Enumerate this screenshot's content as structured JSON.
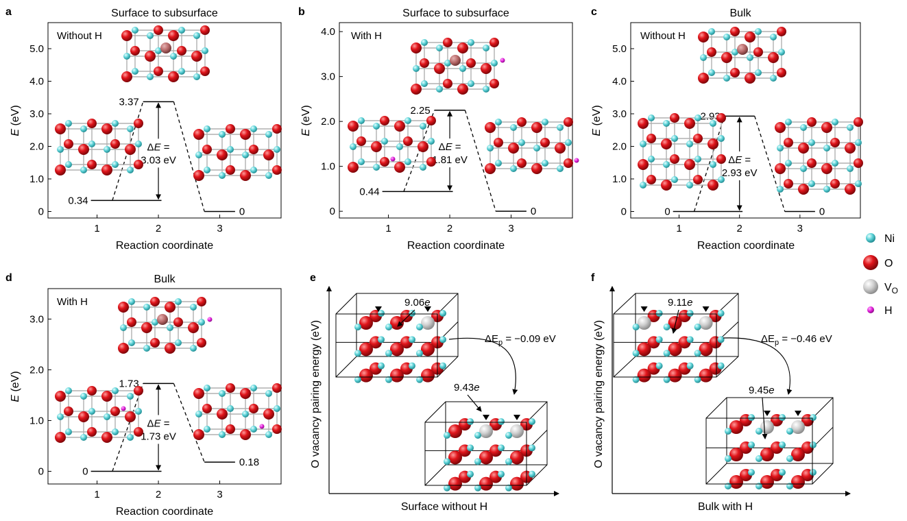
{
  "figure": {
    "legend": [
      {
        "key": "ni",
        "label": "Ni",
        "color": "#5fd3d8"
      },
      {
        "key": "o",
        "label": "O",
        "color": "#e0151b"
      },
      {
        "key": "vo",
        "label": "V",
        "sub": "O",
        "color": "#c8c8c8"
      },
      {
        "key": "h",
        "label": "H",
        "color": "#e020d8"
      }
    ],
    "colors": {
      "ni": "#5fd3d8",
      "o": "#e0151b",
      "vo": "#c8c8c8",
      "h": "#e020d8",
      "vac_center": "#b86a6a",
      "bond": "#a8a8a8"
    }
  },
  "chart_data": [
    {
      "id": "a",
      "panel_label": "a",
      "type": "line",
      "title": "Surface to subsurface",
      "condition": "Without H",
      "xlabel": "Reaction coordinate",
      "ylabel_main": "E",
      "ylabel_unit": " (eV)",
      "xlim": [
        0.2,
        4.0
      ],
      "ylim": [
        -0.2,
        5.8
      ],
      "xticks": [
        1,
        2,
        3
      ],
      "yticks": [
        0,
        1.0,
        2.0,
        3.0,
        4.0,
        5.0
      ],
      "ytick_labels": [
        "0",
        "1.0",
        "2.0",
        "3.0",
        "4.0",
        "5.0"
      ],
      "levels": [
        {
          "x": [
            0.9,
            2.05
          ],
          "y": 0.34,
          "label": "0.34"
        },
        {
          "x": [
            1.75,
            2.25
          ],
          "y": 3.37,
          "label": "3.37"
        },
        {
          "x": [
            2.75,
            3.25
          ],
          "y": 0,
          "label": "0"
        }
      ],
      "delta": {
        "prefix": "ΔE =",
        "value": "3.03 eV",
        "x": 2.0,
        "from": 0.34,
        "to": 3.37
      }
    },
    {
      "id": "b",
      "panel_label": "b",
      "type": "line",
      "title": "Surface to subsurface",
      "condition": "With H",
      "xlabel": "Reaction coordinate",
      "ylabel_main": "E",
      "ylabel_unit": " (eV)",
      "xlim": [
        0.2,
        4.0
      ],
      "ylim": [
        -0.15,
        4.2
      ],
      "xticks": [
        1,
        2,
        3
      ],
      "yticks": [
        0,
        1.0,
        2.0,
        3.0,
        4.0
      ],
      "ytick_labels": [
        "0",
        "1.0",
        "2.0",
        "3.0",
        "4.0"
      ],
      "levels": [
        {
          "x": [
            0.9,
            2.05
          ],
          "y": 0.44,
          "label": "0.44"
        },
        {
          "x": [
            1.75,
            2.25
          ],
          "y": 2.25,
          "label": "2.25"
        },
        {
          "x": [
            2.75,
            3.25
          ],
          "y": 0,
          "label": "0"
        }
      ],
      "delta": {
        "prefix": "ΔE =",
        "value": "1.81 eV",
        "x": 2.0,
        "from": 0.44,
        "to": 2.25
      }
    },
    {
      "id": "c",
      "panel_label": "c",
      "type": "line",
      "title": "Bulk",
      "condition": "Without H",
      "xlabel": "Reaction coordinate",
      "ylabel_main": "E",
      "ylabel_unit": " (eV)",
      "xlim": [
        0.2,
        4.0
      ],
      "ylim": [
        -0.2,
        5.8
      ],
      "xticks": [
        1,
        2,
        3
      ],
      "yticks": [
        0,
        1.0,
        2.0,
        3.0,
        4.0,
        5.0
      ],
      "ytick_labels": [
        "0",
        "1.0",
        "2.0",
        "3.0",
        "4.0",
        "5.0"
      ],
      "levels": [
        {
          "x": [
            0.9,
            2.05
          ],
          "y": 0,
          "label": "0"
        },
        {
          "x": [
            1.75,
            2.25
          ],
          "y": 2.93,
          "label": "2.93"
        },
        {
          "x": [
            2.75,
            3.25
          ],
          "y": 0,
          "label": "0"
        }
      ],
      "delta": {
        "prefix": "ΔE =",
        "value": "2.93 eV",
        "x": 2.0,
        "from": 0,
        "to": 2.93
      }
    },
    {
      "id": "d",
      "panel_label": "d",
      "type": "line",
      "title": "Bulk",
      "condition": "With H",
      "xlabel": "Reaction coordinate",
      "ylabel_main": "E",
      "ylabel_unit": " (eV)",
      "xlim": [
        0.2,
        4.0
      ],
      "ylim": [
        -0.25,
        3.6
      ],
      "xticks": [
        1,
        2,
        3
      ],
      "yticks": [
        0,
        1.0,
        2.0,
        3.0
      ],
      "ytick_labels": [
        "0",
        "1.0",
        "2.0",
        "3.0"
      ],
      "levels": [
        {
          "x": [
            0.9,
            2.05
          ],
          "y": 0,
          "label": "0"
        },
        {
          "x": [
            1.75,
            2.25
          ],
          "y": 1.73,
          "label": "1.73"
        },
        {
          "x": [
            2.75,
            3.25
          ],
          "y": 0.18,
          "label": "0.18"
        }
      ],
      "delta": {
        "prefix": "ΔE =",
        "value": "1.73 eV",
        "x": 2.0,
        "from": 0,
        "to": 1.73
      }
    }
  ],
  "schematics": [
    {
      "id": "e",
      "panel_label": "e",
      "ylabel": "O vacancy pairing energy (eV)",
      "xlabel": "Surface without H",
      "top_charge": "9.06",
      "bottom_charge": "9.43",
      "charge_unit": "e",
      "energy_prefix": "ΔE",
      "energy_sub": "p",
      "energy_value": " = −0.09 eV"
    },
    {
      "id": "f",
      "panel_label": "f",
      "ylabel": "O vacancy pairing energy (eV)",
      "xlabel": "Bulk with H",
      "top_charge": "9.11",
      "bottom_charge": "9.45",
      "charge_unit": "e",
      "energy_prefix": "ΔE",
      "energy_sub": "p",
      "energy_value": " = −0.46 eV"
    }
  ]
}
